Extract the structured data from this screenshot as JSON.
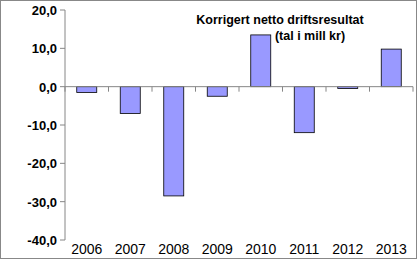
{
  "chart_data": {
    "type": "bar",
    "title": "Korrigert netto driftsresultat",
    "subtitle": "(tal i mill kr)",
    "categories": [
      "2006",
      "2007",
      "2008",
      "2009",
      "2010",
      "2011",
      "2012",
      "2013"
    ],
    "values": [
      -1.5,
      -7.0,
      -28.5,
      -2.5,
      13.5,
      -12.0,
      -0.5,
      9.8
    ],
    "color": "#9999ff",
    "ylim": [
      -40,
      20
    ],
    "yticks": [
      {
        "value": -40,
        "label": "-40,0"
      },
      {
        "value": -30,
        "label": "-30,0"
      },
      {
        "value": -20,
        "label": "-20,0"
      },
      {
        "value": -10,
        "label": "-10,0"
      },
      {
        "value": 0,
        "label": "0,0"
      },
      {
        "value": 10,
        "label": "10,0"
      },
      {
        "value": 20,
        "label": "20,0"
      }
    ],
    "grid": false
  }
}
